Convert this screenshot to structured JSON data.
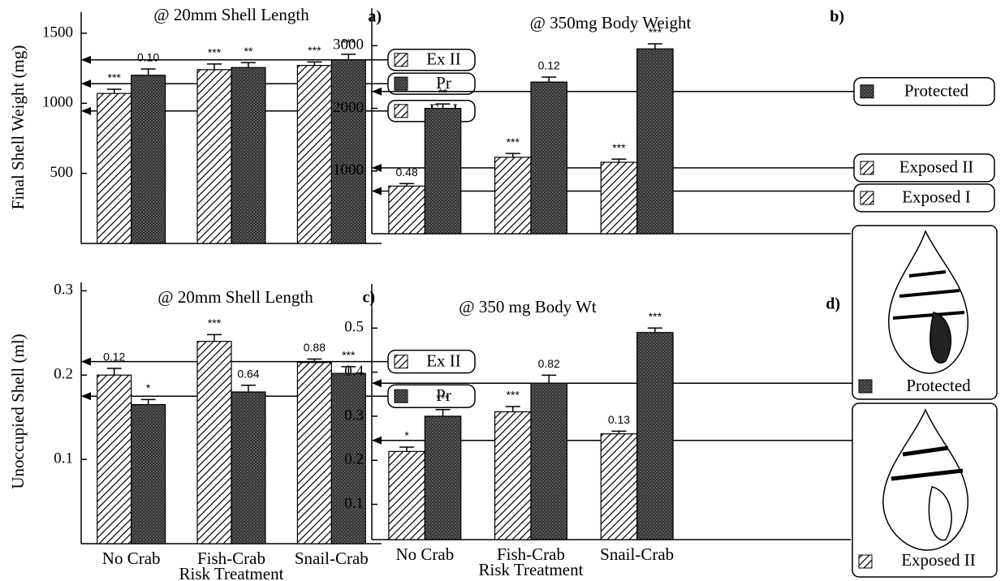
{
  "chart_data": [
    {
      "type": "bar",
      "title": "@ 20mm Shell Length",
      "panel_label": "a)",
      "y_label": "Final Shell Weight (mg)",
      "ylim": [
        0,
        1650
      ],
      "yticks": [
        500,
        1000,
        1500
      ],
      "series": [
        {
          "pattern": "hatch",
          "color": "#000000",
          "values": [
            1070,
            1240,
            1270
          ],
          "errors": [
            30,
            40,
            25
          ],
          "annotations": [
            "***",
            "***",
            "***"
          ]
        },
        {
          "pattern": "stipple",
          "color": "#333333",
          "values": [
            1200,
            1255,
            1310
          ],
          "errors": [
            45,
            35,
            40
          ],
          "annotations": [
            "0.10",
            "**",
            "***"
          ]
        }
      ],
      "references": [
        {
          "label": "Ex II",
          "value": 1310,
          "pattern": "hatch"
        },
        {
          "label": "Pr",
          "value": 1140,
          "pattern": "stipple"
        },
        {
          "label": "Ex I",
          "value": 945,
          "pattern": "hatch"
        }
      ]
    },
    {
      "type": "bar",
      "title": "@ 350mg Body Weight",
      "panel_label": "b)",
      "ylim": [
        0,
        3600
      ],
      "yticks": [
        1000,
        2000,
        3000
      ],
      "series": [
        {
          "pattern": "hatch",
          "color": "#000000",
          "values": [
            760,
            1220,
            1140
          ],
          "errors": [
            40,
            60,
            50
          ],
          "annotations": [
            "0.48",
            "***",
            "***"
          ]
        },
        {
          "pattern": "stipple",
          "color": "#333333",
          "values": [
            2000,
            2420,
            2950
          ],
          "errors": [
            70,
            80,
            80
          ],
          "annotations": [
            "**",
            "0.12",
            "***"
          ]
        }
      ],
      "references": [
        {
          "label": "Protected",
          "value": 2270,
          "pattern": "stipple"
        },
        {
          "label": "Exposed II",
          "value": 1050,
          "pattern": "hatch"
        },
        {
          "label": "Exposed I",
          "value": 680,
          "pattern": "hatch"
        }
      ]
    },
    {
      "type": "bar",
      "title": "@ 20mm Shell Length",
      "panel_label": "c)",
      "y_label": "Unoccupied Shell (ml)",
      "x_label": "Risk Treatment",
      "categories": [
        "No Crab",
        "Fish-Crab",
        "Snail-Crab"
      ],
      "ylim": [
        0,
        0.31
      ],
      "yticks": [
        0.1,
        0.2,
        0.3
      ],
      "series": [
        {
          "pattern": "hatch",
          "color": "#000000",
          "values": [
            0.2,
            0.24,
            0.215
          ],
          "errors": [
            0.008,
            0.008,
            0.004
          ],
          "annotations": [
            "0.12",
            "***",
            "0.88"
          ]
        },
        {
          "pattern": "stipple",
          "color": "#333333",
          "values": [
            0.165,
            0.18,
            0.202
          ],
          "errors": [
            0.006,
            0.008,
            0.008
          ],
          "annotations": [
            "*",
            "0.64",
            "***"
          ]
        }
      ],
      "references": [
        {
          "label": "Ex II",
          "value": 0.216,
          "pattern": "hatch"
        },
        {
          "label": "Pr",
          "value": 0.175,
          "pattern": "stipple"
        }
      ]
    },
    {
      "type": "bar",
      "title": "@ 350 mg Body Wt",
      "panel_label": "d)",
      "x_label": "Risk Treatment",
      "categories": [
        "No Crab",
        "Fish-Crab",
        "Snail-Crab"
      ],
      "ylim": [
        0.02,
        0.6
      ],
      "yticks": [
        0.1,
        0.2,
        0.3,
        0.4,
        0.5
      ],
      "series": [
        {
          "pattern": "hatch",
          "color": "#000000",
          "values": [
            0.22,
            0.31,
            0.26
          ],
          "errors": [
            0.01,
            0.012,
            0.006
          ],
          "annotations": [
            "*",
            "***",
            "0.13"
          ]
        },
        {
          "pattern": "stipple",
          "color": "#333333",
          "values": [
            0.3,
            0.375,
            0.49
          ],
          "errors": [
            0.015,
            0.018,
            0.01
          ],
          "annotations": [
            "***",
            "0.82",
            "***"
          ]
        }
      ],
      "references": [
        {
          "label": "Protected",
          "value": 0.375,
          "pattern": "stipple"
        },
        {
          "label": "Exposed II",
          "value": 0.245,
          "pattern": "hatch"
        }
      ]
    }
  ]
}
